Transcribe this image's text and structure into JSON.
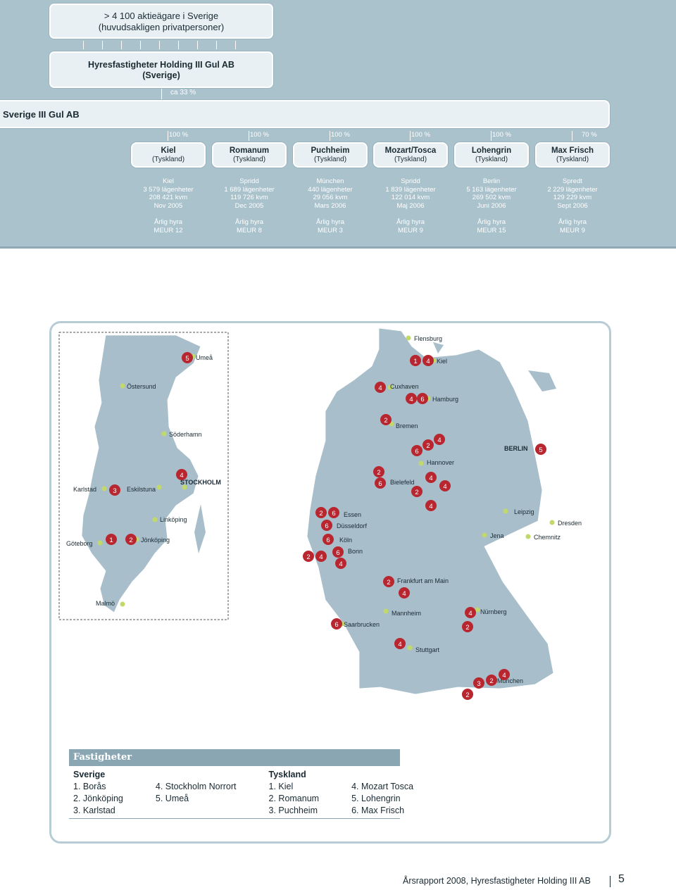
{
  "org": {
    "shareholders": [
      "> 4 100 aktieägare i Sverige",
      "(huvudsakligen privatpersoner)"
    ],
    "holding": [
      "Hyresfastigheter Holding III Gul AB",
      "(Sverige)"
    ],
    "ownership": "ca 33 %",
    "gul_ab": "Sverige III Gul AB",
    "subsidiaries": [
      {
        "pct": "100 %",
        "name": "Kiel",
        "country": "(Tyskland)",
        "location": "Kiel",
        "apartments": "3 579 lägenheter",
        "area": "208 421 kvm",
        "date": "Nov 2005",
        "rent_label": "Årlig hyra",
        "rent": "MEUR 12"
      },
      {
        "pct": "100 %",
        "name": "Romanum",
        "country": "(Tyskland)",
        "location": "Spridd",
        "apartments": "1 689 lägenheter",
        "area": "119 726 kvm",
        "date": "Dec 2005",
        "rent_label": "Årlig hyra",
        "rent": "MEUR 8"
      },
      {
        "pct": "100 %",
        "name": "Puchheim",
        "country": "(Tyskland)",
        "location": "München",
        "apartments": "440 lägenheter",
        "area": "29 056 kvm",
        "date": "Mars 2006",
        "rent_label": "Årlig hyra",
        "rent": "MEUR 3"
      },
      {
        "pct": "100 %",
        "name": "Mozart/Tosca",
        "country": "(Tyskland)",
        "location": "Spridd",
        "apartments": "1 839 lägenheter",
        "area": "122 014 kvm",
        "date": "Maj 2006",
        "rent_label": "Årlig hyra",
        "rent": "MEUR 9"
      },
      {
        "pct": "100 %",
        "name": "Lohengrin",
        "country": "(Tyskland)",
        "location": "Berlin",
        "apartments": "5 163 lägenheter",
        "area": "269 502 kvm",
        "date": "Juni 2006",
        "rent_label": "Årlig hyra",
        "rent": "MEUR 15"
      },
      {
        "pct": "70 %",
        "name": "Max Frisch",
        "country": "(Tyskland)",
        "location": "Spredt",
        "apartments": "2 229 lägenheter",
        "area": "129 229 kvm",
        "date": "Sept 2006",
        "rent_label": "Årlig hyra",
        "rent": "MEUR 9"
      }
    ]
  },
  "map": {
    "sweden_cities": [
      "Umeå",
      "Östersund",
      "Söderhamn",
      "STOCKHOLM",
      "Karlstad",
      "Eskilstuna",
      "Linköping",
      "Göteborg",
      "Jönköping",
      "Malmö"
    ],
    "germany_cities": [
      "Flensburg",
      "Kiel",
      "Cuxhaven",
      "Hamburg",
      "Bremen",
      "BERLIN",
      "Hannover",
      "Bielefeld",
      "Essen",
      "Düsseldorf",
      "Köln",
      "Bonn",
      "Leipzig",
      "Dresden",
      "Jena",
      "Chemnitz",
      "Frankfurt am Main",
      "Mannheim",
      "Nürnberg",
      "Saarbrucken",
      "Stuttgart",
      "München"
    ],
    "markers": [
      "1",
      "2",
      "3",
      "4",
      "5",
      "6"
    ]
  },
  "legend": {
    "title": "Fastigheter",
    "sweden_header": "Sverige",
    "germany_header": "Tyskland",
    "rows": [
      [
        "1. Borås",
        "4. Stockholm Norrort",
        "1. Kiel",
        "4. Mozart Tosca"
      ],
      [
        "2. Jönköping",
        "5. Umeå",
        "2. Romanum",
        "5. Lohengrin"
      ],
      [
        "3. Karlstad",
        "",
        "3. Puchheim",
        "6. Max Frisch"
      ]
    ]
  },
  "footer": {
    "text": "Årsrapport 2008, Hyresfastigheter Holding III AB",
    "page": "5"
  }
}
